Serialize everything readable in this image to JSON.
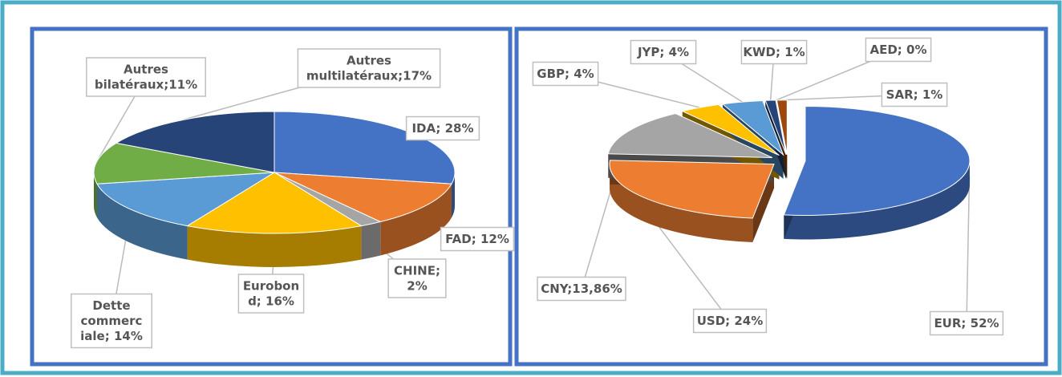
{
  "chart_data": [
    {
      "type": "pie3d",
      "values": [
        28,
        12,
        2,
        16,
        14,
        11,
        17
      ],
      "value_labels": [
        "IDA; 28%",
        "FAD; 12%",
        "CHINE;\n2%",
        "Eurobon\nd; 16%",
        "Dette\ncommerc\niale; 14%",
        "Autres\nbilatéraux;11%",
        "Autres\nmultilatéraux;17%"
      ],
      "colors": [
        "#4472c4",
        "#ed7d31",
        "#a5a5a5",
        "#ffc000",
        "#5b9bd5",
        "#70ad47",
        "#264478"
      ]
    },
    {
      "type": "pie3d",
      "values": [
        52,
        24,
        13.86,
        4,
        4,
        1,
        0,
        1
      ],
      "value_labels": [
        "EUR; 52%",
        "USD; 24%",
        "CNY;13,86%",
        "GBP; 4%",
        "JYP; 4%",
        "KWD; 1%",
        "AED; 0%",
        "SAR; 1%"
      ],
      "colors": [
        "#4472c4",
        "#ed7d31",
        "#a5a5a5",
        "#ffc000",
        "#5b9bd5",
        "#264478",
        "#43682b",
        "#9e480e"
      ]
    }
  ]
}
